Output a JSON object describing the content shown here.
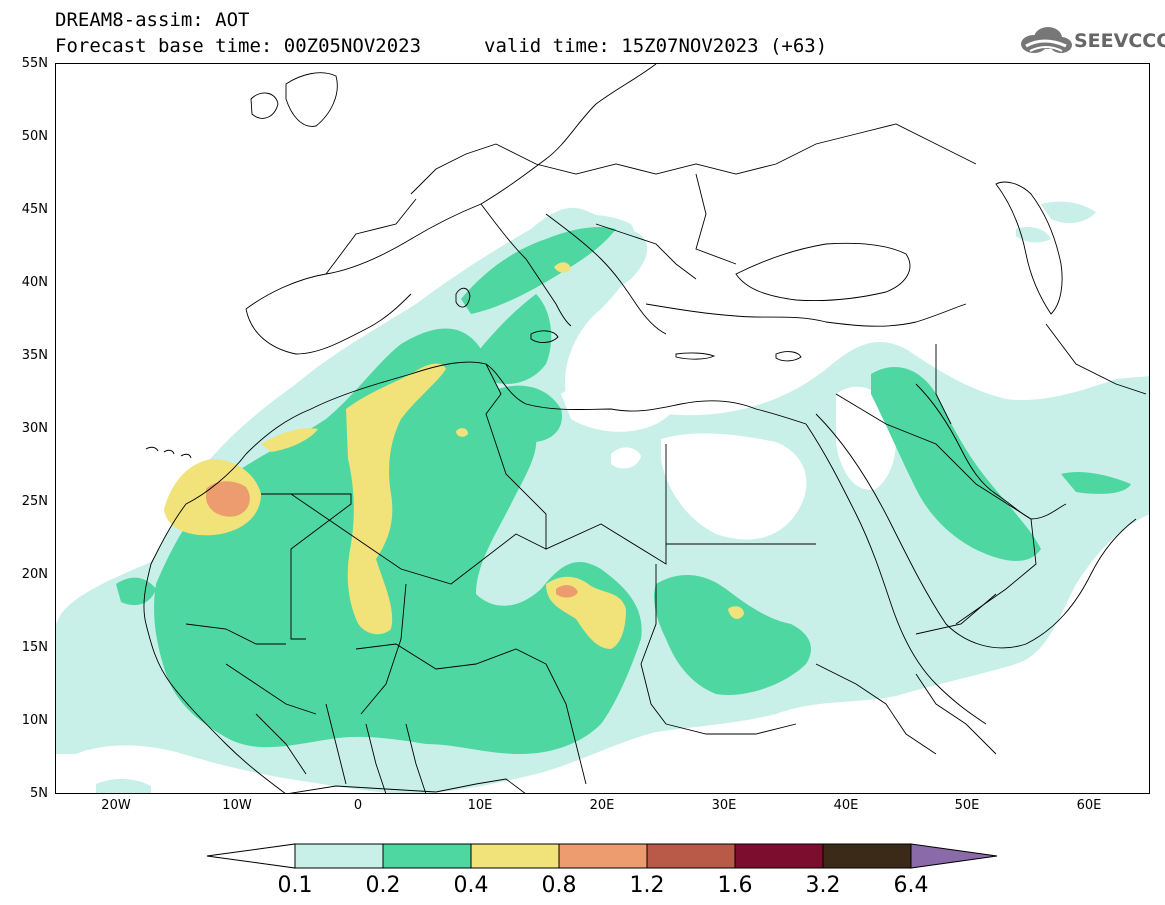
{
  "header": {
    "line1": "DREAM8-assim: AOT",
    "line2": "Forecast base time: 00Z05NOV2023",
    "line2b": "valid time: 15Z07NOV2023 (+63)",
    "logo_text": "SEEVCCC"
  },
  "map": {
    "lon_range": [
      -25,
      65
    ],
    "lat_range": [
      5,
      55
    ],
    "y_tick_labels": [
      "55N",
      "50N",
      "45N",
      "40N",
      "35N",
      "30N",
      "25N",
      "20N",
      "15N",
      "10N",
      "5N"
    ],
    "x_tick_labels": [
      "20W",
      "10W",
      "0",
      "10E",
      "20E",
      "30E",
      "40E",
      "50E",
      "60E"
    ]
  },
  "colorbar": {
    "labels": [
      "0.1",
      "0.2",
      "0.4",
      "0.8",
      "1.2",
      "1.6",
      "3.2",
      "6.4"
    ],
    "colors": [
      "#ffffff",
      "#c8f0e8",
      "#4fd7a1",
      "#f2e27a",
      "#ec9c6e",
      "#b95a48",
      "#7d0d2f",
      "#3b2a18",
      "#8a6aa8"
    ]
  },
  "colors": {
    "level1": "#c8f0e8",
    "level2": "#4fd7a1",
    "level3": "#f2e27a",
    "level4": "#ec9c6e"
  }
}
